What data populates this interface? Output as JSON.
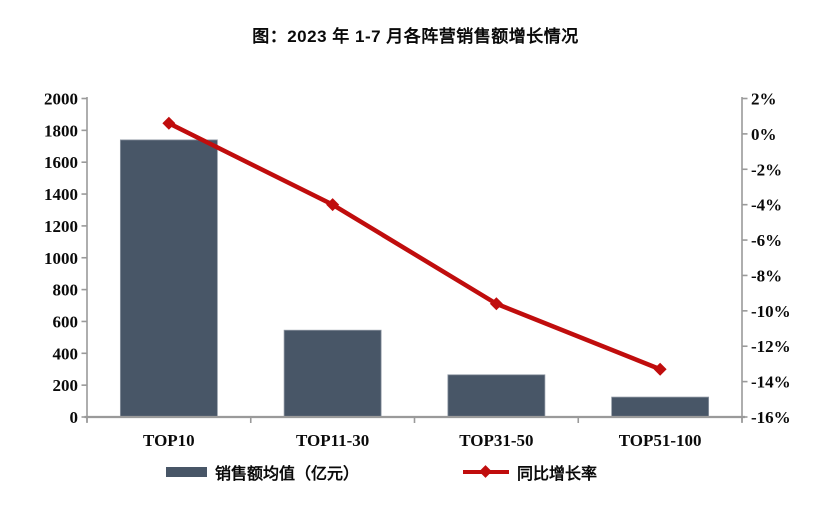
{
  "title": "图：2023 年 1-7 月各阵营销售额增长情况",
  "colors": {
    "bar": "#485667",
    "bar_edge": "#8d96a2",
    "line": "#C00D0D",
    "axis": "#9a9a9a",
    "text": "#0a0a0a"
  },
  "legend": {
    "items": [
      {
        "label": "销售额均值（亿元）",
        "marker": "bar"
      },
      {
        "label": "同比增长率",
        "marker": "line-diamond"
      }
    ]
  },
  "chart_data": {
    "type": "combo-bar-line",
    "title": "图：2023 年 1-7 月各阵营销售额增长情况",
    "categories": [
      "TOP10",
      "TOP11-30",
      "TOP31-50",
      "TOP51-100"
    ],
    "series": [
      {
        "name": "销售额均值（亿元）",
        "type": "bar",
        "axis": "left",
        "values": [
          1740,
          545,
          265,
          125
        ]
      },
      {
        "name": "同比增长率",
        "type": "line",
        "axis": "right",
        "values_percent": [
          0.6,
          -4.0,
          -9.6,
          -13.3
        ]
      }
    ],
    "left_axis": {
      "min": 0,
      "max": 2000,
      "step": 200,
      "tick_labels": [
        "0",
        "200",
        "400",
        "600",
        "800",
        "1000",
        "1200",
        "1400",
        "1600",
        "1800",
        "2000"
      ]
    },
    "right_axis": {
      "min": -16,
      "max": 2,
      "step": 2,
      "tick_labels_top_to_bottom": [
        "2%",
        "0%",
        "-2%",
        "-4%",
        "-6%",
        "-8%",
        "-10%",
        "-12%",
        "-14%",
        "-16%"
      ]
    },
    "grid": false,
    "legend_position": "bottom"
  }
}
